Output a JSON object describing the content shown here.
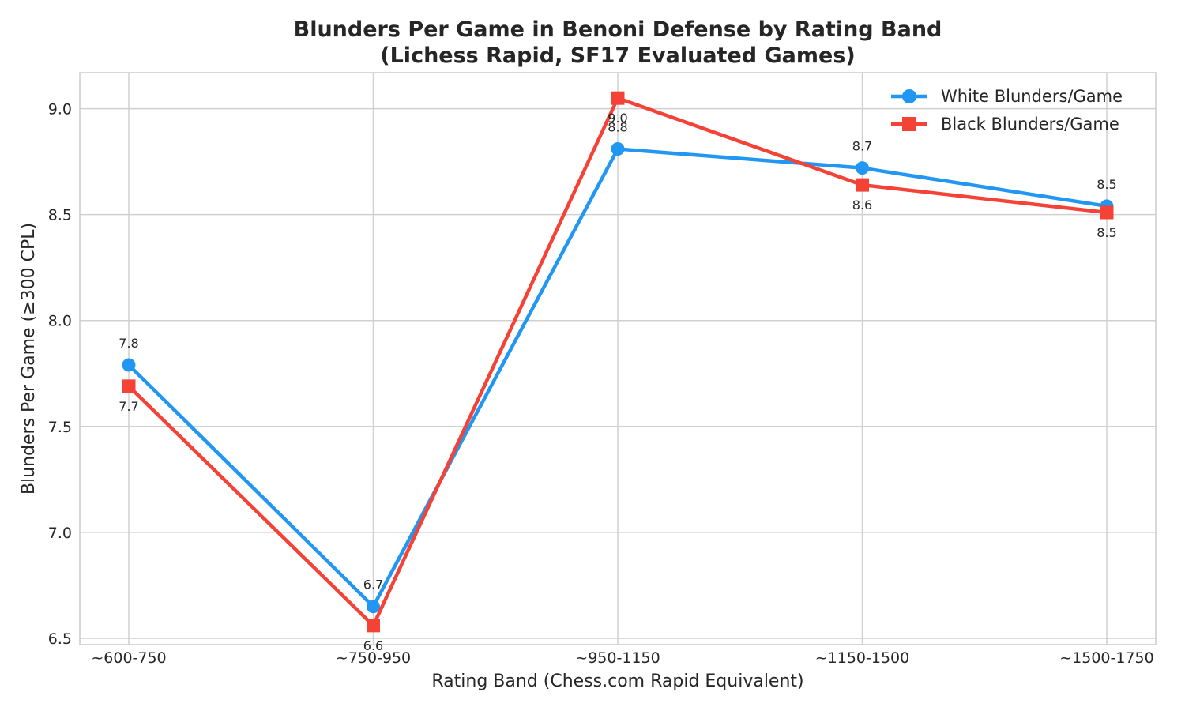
{
  "chart_data": {
    "type": "line",
    "title": "Blunders Per Game in Benoni Defense by Rating Band",
    "subtitle": "(Lichess Rapid, SF17 Evaluated Games)",
    "xlabel": "Rating Band (Chess.com Rapid Equivalent)",
    "ylabel": "Blunders Per Game (≥300 CPL)",
    "categories": [
      "~600-750",
      "~750-950",
      "~950-1150",
      "~1150-1500",
      "~1500-1750"
    ],
    "ylim": [
      6.47,
      9.17
    ],
    "yticks": [
      "6.5",
      "7.0",
      "7.5",
      "8.0",
      "8.5",
      "9.0"
    ],
    "grid": true,
    "legend_position": "top-right",
    "series": [
      {
        "name": "White Blunders/Game",
        "color": "#2196f3",
        "marker": "circle",
        "values": [
          7.79,
          6.65,
          8.81,
          8.72,
          8.54
        ],
        "labels": [
          "7.8",
          "6.7",
          "8.8",
          "8.7",
          "8.5"
        ],
        "label_side": "above"
      },
      {
        "name": "Black Blunders/Game",
        "color": "#f44336",
        "marker": "square",
        "values": [
          7.69,
          6.56,
          9.05,
          8.64,
          8.51
        ],
        "labels": [
          "7.7",
          "6.6",
          "9.0",
          "8.6",
          "8.5"
        ],
        "label_side": "below"
      }
    ]
  }
}
